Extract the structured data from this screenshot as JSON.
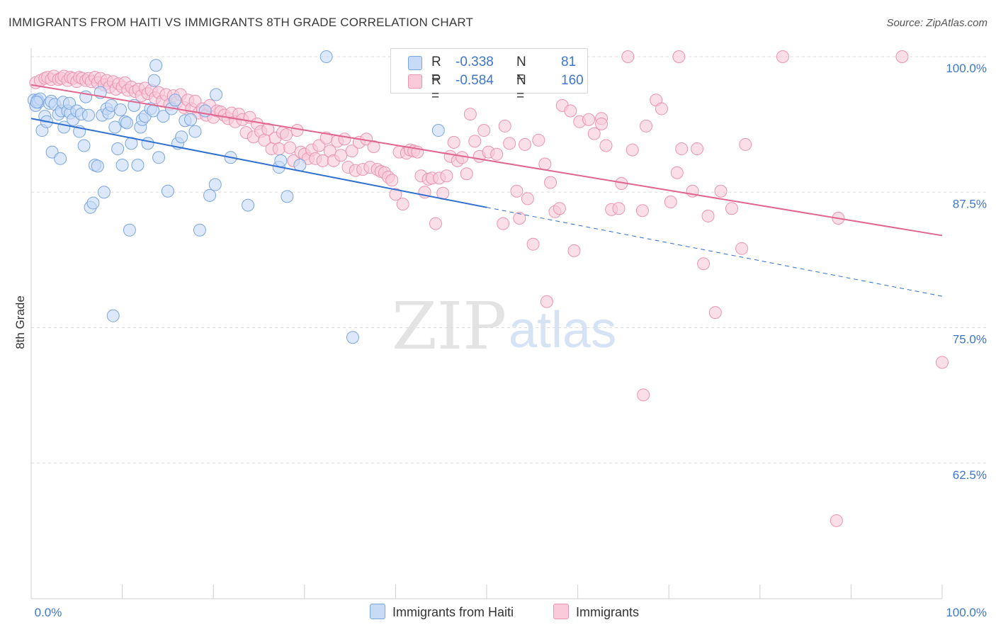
{
  "title": "IMMIGRANTS FROM HAITI VS IMMIGRANTS 8TH GRADE CORRELATION CHART",
  "source": "Source: ZipAtlas.com",
  "watermark": {
    "zip": "ZIP",
    "atlas": "atlas"
  },
  "colors": {
    "blue_fill": "#c7dbf7",
    "blue_stroke": "#7aa6df",
    "blue_line": "#2f6fd0",
    "pink_fill": "#f9cad9",
    "pink_stroke": "#ea94b2",
    "pink_line": "#e0668f",
    "axis_text": "#3f76cc",
    "grid": "#dcdcdc"
  },
  "legend": {
    "rows": [
      {
        "r_label": "R =",
        "r_value": "-0.338",
        "n_label": "N =",
        "n_value": "81"
      },
      {
        "r_label": "R =",
        "r_value": "-0.584",
        "n_label": "N =",
        "n_value": "160"
      }
    ]
  },
  "bottom_legend": [
    "Immigrants from Haiti",
    "Immigrants"
  ],
  "chart_data": {
    "type": "scatter",
    "title": "IMMIGRANTS FROM HAITI VS IMMIGRANTS 8TH GRADE CORRELATION CHART",
    "xlabel": "",
    "ylabel": "8th Grade",
    "xlim": [
      0,
      100
    ],
    "ylim": [
      50,
      100
    ],
    "x_tick_labels": [
      "0.0%",
      "100.0%"
    ],
    "y_ticks": [
      62.5,
      75.0,
      87.5,
      100.0
    ],
    "y_tick_labels": [
      "62.5%",
      "75.0%",
      "87.5%",
      "100.0%"
    ],
    "grid": true,
    "legend_position": "top-center",
    "series": [
      {
        "name": "Immigrants from Haiti",
        "r": -0.338,
        "n": 81,
        "trend": {
          "solid": [
            [
              0,
              94.3
            ],
            [
              50,
              86.1
            ]
          ],
          "dashed": [
            [
              50,
              86.1
            ],
            [
              100,
              77.9
            ]
          ]
        },
        "points": [
          [
            0.3,
            96.0
          ],
          [
            0.5,
            95.5
          ],
          [
            0.7,
            96.0
          ],
          [
            0.8,
            95.8
          ],
          [
            1.0,
            96.1
          ],
          [
            1.2,
            93.2
          ],
          [
            1.5,
            94.5
          ],
          [
            1.7,
            94.0
          ],
          [
            2.0,
            95.7
          ],
          [
            2.2,
            95.9
          ],
          [
            2.3,
            91.2
          ],
          [
            2.6,
            95.6
          ],
          [
            3.0,
            94.7
          ],
          [
            3.3,
            95.0
          ],
          [
            3.5,
            95.8
          ],
          [
            3.2,
            90.6
          ],
          [
            3.6,
            93.5
          ],
          [
            4.0,
            95.0
          ],
          [
            4.3,
            94.8
          ],
          [
            4.2,
            95.7
          ],
          [
            4.6,
            94.2
          ],
          [
            5.0,
            95.0
          ],
          [
            5.3,
            93.1
          ],
          [
            5.5,
            94.7
          ],
          [
            5.8,
            91.8
          ],
          [
            6.0,
            96.3
          ],
          [
            6.3,
            94.6
          ],
          [
            6.5,
            86.1
          ],
          [
            6.8,
            86.5
          ],
          [
            7.0,
            90.0
          ],
          [
            7.3,
            89.9
          ],
          [
            7.6,
            96.7
          ],
          [
            7.8,
            94.6
          ],
          [
            8.0,
            87.5
          ],
          [
            8.3,
            95.2
          ],
          [
            8.5,
            94.8
          ],
          [
            8.8,
            95.5
          ],
          [
            9.0,
            76.1
          ],
          [
            9.2,
            93.5
          ],
          [
            9.5,
            91.5
          ],
          [
            9.8,
            95.1
          ],
          [
            10.0,
            90.0
          ],
          [
            10.3,
            94.0
          ],
          [
            10.5,
            93.9
          ],
          [
            10.8,
            84.0
          ],
          [
            11.0,
            92.0
          ],
          [
            11.3,
            95.5
          ],
          [
            11.7,
            90.0
          ],
          [
            12.0,
            93.5
          ],
          [
            12.2,
            94.2
          ],
          [
            12.5,
            94.5
          ],
          [
            12.8,
            92.0
          ],
          [
            13.1,
            95.2
          ],
          [
            13.4,
            95.0
          ],
          [
            13.7,
            99.2
          ],
          [
            13.5,
            97.8
          ],
          [
            14.0,
            90.7
          ],
          [
            14.5,
            94.5
          ],
          [
            15.0,
            87.6
          ],
          [
            15.4,
            95.2
          ],
          [
            15.8,
            96.0
          ],
          [
            16.1,
            92.0
          ],
          [
            16.5,
            92.6
          ],
          [
            16.9,
            94.1
          ],
          [
            17.5,
            94.2
          ],
          [
            18.0,
            93.1
          ],
          [
            18.5,
            84.0
          ],
          [
            19.1,
            95.0
          ],
          [
            19.6,
            87.2
          ],
          [
            20.2,
            88.2
          ],
          [
            20.3,
            96.5
          ],
          [
            21.9,
            90.7
          ],
          [
            23.8,
            86.3
          ],
          [
            27.2,
            89.8
          ],
          [
            27.4,
            90.4
          ],
          [
            28.1,
            87.1
          ],
          [
            29.5,
            90.0
          ],
          [
            32.4,
            100.0
          ],
          [
            35.3,
            74.1
          ],
          [
            44.7,
            93.2
          ],
          [
            0.6,
            95.8
          ]
        ]
      },
      {
        "name": "Immigrants",
        "r": -0.584,
        "n": 160,
        "trend": {
          "solid": [
            [
              0,
              97.4
            ],
            [
              100,
              83.5
            ]
          ]
        },
        "points": [
          [
            0.5,
            97.6
          ],
          [
            1.0,
            97.8
          ],
          [
            1.5,
            98.0
          ],
          [
            1.8,
            98.1
          ],
          [
            2.2,
            97.9
          ],
          [
            2.5,
            98.2
          ],
          [
            3.0,
            97.9
          ],
          [
            3.3,
            98.0
          ],
          [
            3.6,
            98.2
          ],
          [
            4.0,
            97.8
          ],
          [
            4.3,
            98.1
          ],
          [
            4.6,
            98.0
          ],
          [
            5.0,
            97.7
          ],
          [
            5.3,
            98.1
          ],
          [
            5.6,
            98.0
          ],
          [
            6.0,
            97.8
          ],
          [
            6.3,
            98.0
          ],
          [
            6.6,
            97.7
          ],
          [
            7.0,
            98.1
          ],
          [
            7.3,
            97.6
          ],
          [
            7.6,
            98.0
          ],
          [
            8.0,
            97.4
          ],
          [
            8.3,
            97.8
          ],
          [
            8.6,
            97.2
          ],
          [
            9.0,
            97.7
          ],
          [
            9.3,
            97.0
          ],
          [
            9.6,
            97.5
          ],
          [
            10.0,
            97.2
          ],
          [
            10.3,
            97.6
          ],
          [
            10.6,
            96.9
          ],
          [
            11.0,
            97.2
          ],
          [
            11.4,
            96.8
          ],
          [
            11.8,
            97.0
          ],
          [
            12.1,
            96.4
          ],
          [
            12.5,
            97.1
          ],
          [
            12.8,
            96.6
          ],
          [
            13.2,
            96.9
          ],
          [
            13.6,
            96.2
          ],
          [
            14.0,
            96.7
          ],
          [
            14.4,
            95.9
          ],
          [
            14.8,
            96.5
          ],
          [
            15.2,
            95.6
          ],
          [
            15.6,
            96.4
          ],
          [
            16.0,
            95.8
          ],
          [
            16.4,
            96.5
          ],
          [
            16.8,
            95.3
          ],
          [
            17.2,
            96.0
          ],
          [
            17.6,
            95.2
          ],
          [
            18.0,
            95.9
          ],
          [
            18.4,
            94.8
          ],
          [
            18.8,
            95.2
          ],
          [
            19.2,
            94.6
          ],
          [
            19.6,
            95.5
          ],
          [
            20.0,
            94.4
          ],
          [
            20.4,
            95.0
          ],
          [
            20.8,
            94.9
          ],
          [
            21.2,
            94.6
          ],
          [
            21.6,
            94.3
          ],
          [
            22.0,
            94.8
          ],
          [
            22.4,
            94.0
          ],
          [
            22.8,
            94.7
          ],
          [
            23.2,
            94.2
          ],
          [
            23.6,
            93.0
          ],
          [
            24.0,
            94.4
          ],
          [
            24.4,
            92.6
          ],
          [
            24.8,
            93.8
          ],
          [
            25.2,
            93.1
          ],
          [
            25.6,
            92.3
          ],
          [
            26.0,
            93.3
          ],
          [
            26.4,
            91.5
          ],
          [
            26.8,
            92.5
          ],
          [
            27.2,
            91.5
          ],
          [
            27.6,
            93.0
          ],
          [
            28.0,
            92.8
          ],
          [
            28.4,
            91.6
          ],
          [
            28.8,
            90.4
          ],
          [
            29.2,
            93.2
          ],
          [
            29.6,
            91.2
          ],
          [
            30.0,
            91.0
          ],
          [
            30.4,
            90.6
          ],
          [
            30.8,
            91.4
          ],
          [
            31.2,
            90.6
          ],
          [
            31.6,
            91.8
          ],
          [
            32.0,
            90.4
          ],
          [
            32.4,
            92.5
          ],
          [
            32.8,
            91.3
          ],
          [
            33.2,
            90.4
          ],
          [
            33.6,
            92.2
          ],
          [
            34.0,
            90.9
          ],
          [
            34.4,
            92.4
          ],
          [
            34.8,
            89.8
          ],
          [
            35.2,
            91.3
          ],
          [
            35.6,
            89.5
          ],
          [
            36.0,
            92.1
          ],
          [
            36.4,
            89.6
          ],
          [
            36.8,
            92.4
          ],
          [
            37.2,
            89.8
          ],
          [
            37.6,
            91.7
          ],
          [
            38.0,
            89.6
          ],
          [
            38.4,
            89.4
          ],
          [
            38.8,
            89.3
          ],
          [
            39.2,
            88.9
          ],
          [
            39.6,
            88.6
          ],
          [
            40.0,
            87.3
          ],
          [
            40.4,
            91.2
          ],
          [
            40.8,
            86.4
          ],
          [
            41.2,
            91.1
          ],
          [
            41.6,
            91.4
          ],
          [
            42.0,
            91.3
          ],
          [
            42.4,
            91.2
          ],
          [
            42.8,
            89.0
          ],
          [
            43.2,
            87.5
          ],
          [
            43.6,
            88.7
          ],
          [
            44.0,
            88.8
          ],
          [
            44.4,
            84.6
          ],
          [
            44.8,
            88.8
          ],
          [
            45.2,
            87.4
          ],
          [
            45.6,
            89.0
          ],
          [
            46.0,
            90.8
          ],
          [
            46.4,
            92.1
          ],
          [
            46.8,
            90.4
          ],
          [
            47.3,
            90.7
          ],
          [
            47.8,
            89.2
          ],
          [
            48.2,
            94.7
          ],
          [
            48.7,
            92.2
          ],
          [
            49.2,
            90.8
          ],
          [
            49.7,
            93.2
          ],
          [
            50.2,
            91.2
          ],
          [
            51.1,
            91.0
          ],
          [
            51.8,
            84.6
          ],
          [
            52.0,
            93.6
          ],
          [
            52.5,
            92.0
          ],
          [
            53.3,
            87.6
          ],
          [
            53.6,
            85.1
          ],
          [
            54.2,
            91.9
          ],
          [
            55.1,
            82.7
          ],
          [
            55.7,
            92.3
          ],
          [
            56.4,
            90.1
          ],
          [
            57.0,
            88.4
          ],
          [
            57.5,
            85.7
          ],
          [
            58.0,
            86.0
          ],
          [
            58.3,
            95.5
          ],
          [
            59.2,
            95.0
          ],
          [
            59.6,
            82.1
          ],
          [
            60.2,
            94.0
          ],
          [
            61.2,
            94.2
          ],
          [
            61.8,
            92.9
          ],
          [
            62.6,
            94.3
          ],
          [
            62.6,
            93.8
          ],
          [
            63.1,
            91.8
          ],
          [
            63.7,
            85.9
          ],
          [
            64.8,
            88.3
          ],
          [
            66.0,
            91.4
          ],
          [
            67.1,
            85.8
          ],
          [
            67.5,
            93.6
          ],
          [
            68.6,
            96.0
          ],
          [
            69.2,
            95.2
          ],
          [
            70.2,
            86.6
          ],
          [
            70.9,
            89.3
          ],
          [
            71.4,
            91.5
          ],
          [
            73.1,
            91.5
          ],
          [
            73.8,
            80.9
          ],
          [
            74.3,
            85.3
          ],
          [
            75.1,
            76.4
          ],
          [
            76.9,
            86.0
          ],
          [
            78.0,
            82.3
          ],
          [
            78.4,
            91.9
          ],
          [
            88.4,
            57.2
          ],
          [
            88.6,
            85.1
          ],
          [
            100.0,
            71.8
          ],
          [
            65.5,
            100.0
          ],
          [
            71.1,
            100.0
          ],
          [
            82.5,
            100.0
          ],
          [
            95.6,
            100.0
          ],
          [
            67.2,
            68.8
          ],
          [
            56.6,
            77.4
          ],
          [
            64.5,
            86.0
          ],
          [
            72.6,
            87.6
          ],
          [
            75.7,
            87.6
          ],
          [
            54.5,
            86.9
          ]
        ]
      }
    ]
  }
}
